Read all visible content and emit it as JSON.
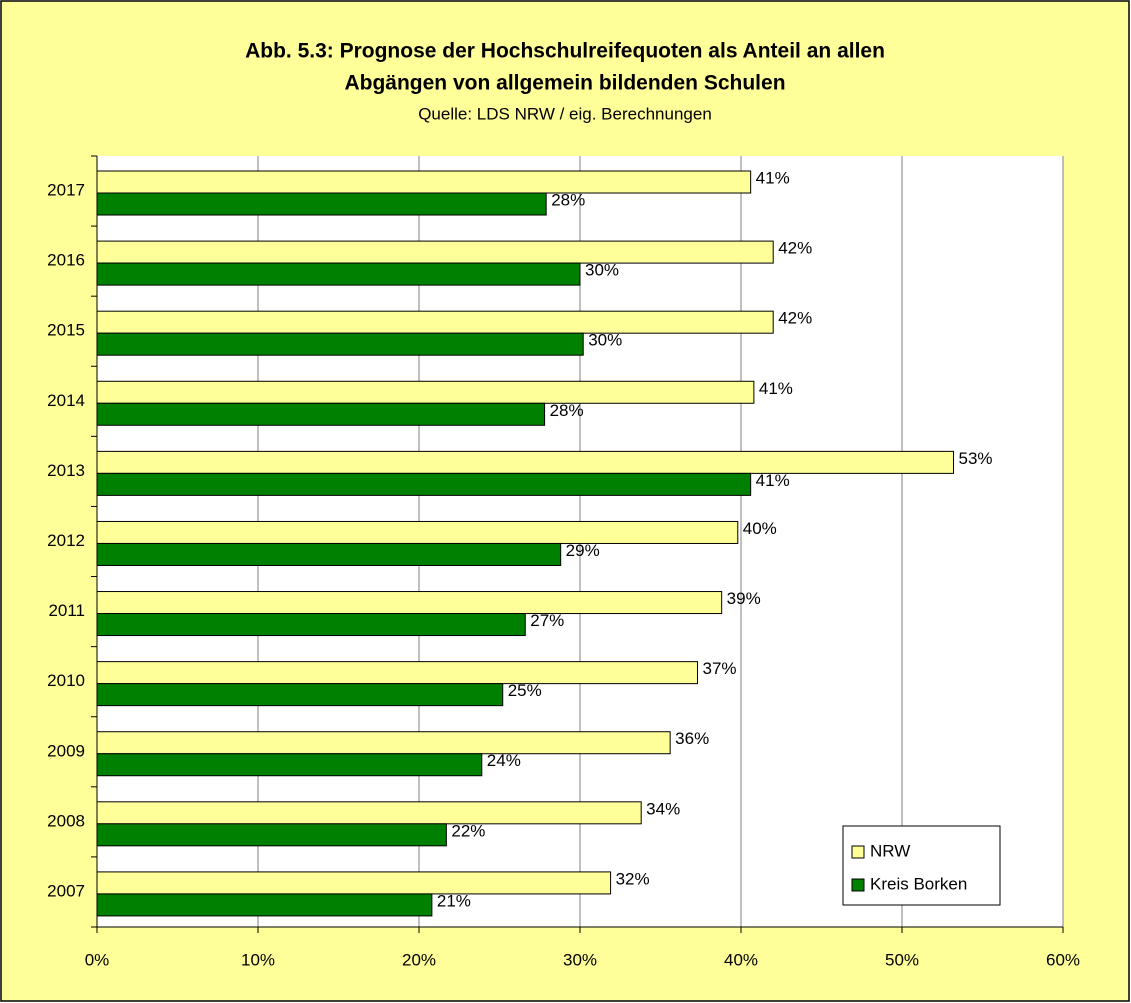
{
  "chart_data": {
    "type": "hbar",
    "title": [
      "Abb. 5.3: Prognose der Hochschulreifequoten als Anteil an allen",
      "Abgängen von allgemein bildenden Schulen"
    ],
    "subtitle": "Quelle: LDS NRW / eig. Berechnungen",
    "categories": [
      "2007",
      "2008",
      "2009",
      "2010",
      "2011",
      "2012",
      "2013",
      "2014",
      "2015",
      "2016",
      "2017"
    ],
    "series": [
      {
        "name": "NRW",
        "color": "#ffff99",
        "values": [
          31.9,
          33.8,
          35.6,
          37.3,
          38.8,
          39.8,
          53.2,
          40.8,
          42.0,
          42.0,
          40.6
        ],
        "value_labels": [
          "32%",
          "34%",
          "36%",
          "37%",
          "39%",
          "40%",
          "53%",
          "41%",
          "42%",
          "42%",
          "41%"
        ]
      },
      {
        "name": "Kreis Borken",
        "color": "#008000",
        "values": [
          20.8,
          21.7,
          23.9,
          25.2,
          26.6,
          28.8,
          40.6,
          27.8,
          30.2,
          30.0,
          27.9
        ],
        "value_labels": [
          "21%",
          "22%",
          "24%",
          "25%",
          "27%",
          "29%",
          "41%",
          "28%",
          "30%",
          "30%",
          "28%"
        ]
      }
    ],
    "xlim": [
      0,
      60
    ],
    "xticks": [
      {
        "value": 0,
        "label": "0%"
      },
      {
        "value": 10,
        "label": "10%"
      },
      {
        "value": 20,
        "label": "20%"
      },
      {
        "value": 30,
        "label": "30%"
      },
      {
        "value": 40,
        "label": "40%"
      },
      {
        "value": 50,
        "label": "50%"
      },
      {
        "value": 60,
        "label": "60%"
      }
    ],
    "grid": true,
    "legend": "lower right"
  }
}
